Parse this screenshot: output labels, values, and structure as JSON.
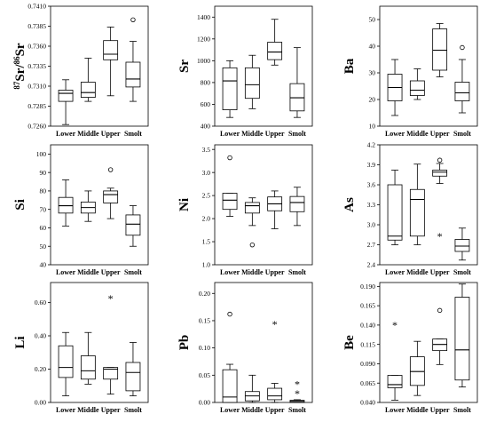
{
  "chart_data": [
    {
      "type": "boxplot",
      "ylabel": "87Sr/86Sr",
      "ylabel_parts": {
        "sup1": "87",
        "main1": "Sr/",
        "sup2": "86",
        "main2": "Sr"
      },
      "ylim": [
        0.726,
        0.741
      ],
      "yticks": [
        "0.7260",
        "0.7285",
        "0.7310",
        "0.7335",
        "0.7360",
        "0.7385",
        "0.7410"
      ],
      "categories": [
        "Lower",
        "Middle",
        "Upper",
        "Smolt"
      ],
      "boxes": [
        {
          "min": 0.7262,
          "q1": 0.7291,
          "median": 0.7301,
          "q3": 0.7305,
          "max": 0.7318,
          "outliers": [],
          "extremes": []
        },
        {
          "min": 0.7291,
          "q1": 0.7296,
          "median": 0.7302,
          "q3": 0.7315,
          "max": 0.7345,
          "outliers": [],
          "extremes": []
        },
        {
          "min": 0.7298,
          "q1": 0.7343,
          "median": 0.735,
          "q3": 0.7367,
          "max": 0.7384,
          "outliers": [],
          "extremes": []
        },
        {
          "min": 0.7291,
          "q1": 0.7309,
          "median": 0.7319,
          "q3": 0.734,
          "max": 0.7366,
          "outliers": [
            0.7393
          ],
          "extremes": []
        }
      ]
    },
    {
      "type": "boxplot",
      "ylabel": "Sr",
      "ylim": [
        400,
        1500
      ],
      "yticks": [
        "400",
        "600",
        "800",
        "1000",
        "1200",
        "1400"
      ],
      "categories": [
        "Lower",
        "Middle",
        "Upper",
        "Smolt"
      ],
      "boxes": [
        {
          "min": 480,
          "q1": 550,
          "median": 815,
          "q3": 935,
          "max": 1000,
          "outliers": [],
          "extremes": []
        },
        {
          "min": 560,
          "q1": 655,
          "median": 780,
          "q3": 935,
          "max": 1050,
          "outliers": [],
          "extremes": []
        },
        {
          "min": 960,
          "q1": 1010,
          "median": 1080,
          "q3": 1170,
          "max": 1380,
          "outliers": [],
          "extremes": []
        },
        {
          "min": 480,
          "q1": 540,
          "median": 660,
          "q3": 790,
          "max": 1120,
          "outliers": [],
          "extremes": []
        }
      ]
    },
    {
      "type": "boxplot",
      "ylabel": "Ba",
      "ylim": [
        10,
        55
      ],
      "yticks": [
        "10",
        "20",
        "30",
        "40",
        "50"
      ],
      "categories": [
        "Lower",
        "Middle",
        "Upper",
        "Smolt"
      ],
      "boxes": [
        {
          "min": 14,
          "q1": 19.5,
          "median": 24.5,
          "q3": 29.5,
          "max": 35,
          "outliers": [],
          "extremes": []
        },
        {
          "min": 20,
          "q1": 21.5,
          "median": 23.5,
          "q3": 27,
          "max": 31.5,
          "outliers": [],
          "extremes": []
        },
        {
          "min": 28.5,
          "q1": 31,
          "median": 38.5,
          "q3": 46.5,
          "max": 48.5,
          "outliers": [],
          "extremes": []
        },
        {
          "min": 15,
          "q1": 19.5,
          "median": 22.5,
          "q3": 26.5,
          "max": 35,
          "outliers": [
            39.5
          ],
          "extremes": []
        }
      ]
    },
    {
      "type": "boxplot",
      "ylabel": "Si",
      "ylim": [
        40,
        105
      ],
      "yticks": [
        "40",
        "50",
        "60",
        "70",
        "80",
        "90",
        "100"
      ],
      "categories": [
        "Lower",
        "Middle",
        "Upper",
        "Smolt"
      ],
      "boxes": [
        {
          "min": 61,
          "q1": 68,
          "median": 72,
          "q3": 76.5,
          "max": 86,
          "outliers": [],
          "extremes": []
        },
        {
          "min": 63.5,
          "q1": 68,
          "median": 71,
          "q3": 74,
          "max": 80,
          "outliers": [],
          "extremes": []
        },
        {
          "min": 65,
          "q1": 73.5,
          "median": 78,
          "q3": 80,
          "max": 81.5,
          "outliers": [
            91.5
          ],
          "extremes": []
        },
        {
          "min": 50,
          "q1": 56,
          "median": 62,
          "q3": 67,
          "max": 72,
          "outliers": [],
          "extremes": []
        }
      ]
    },
    {
      "type": "boxplot",
      "ylabel": "Ni",
      "ylim": [
        1.0,
        3.6
      ],
      "yticks": [
        "1.0",
        "1.5",
        "2.0",
        "2.5",
        "3.0",
        "3.5"
      ],
      "categories": [
        "Lower",
        "Middle",
        "Upper",
        "Smolt"
      ],
      "boxes": [
        {
          "min": 2.05,
          "q1": 2.2,
          "median": 2.4,
          "q3": 2.55,
          "max": 2.55,
          "outliers": [
            3.32
          ],
          "extremes": []
        },
        {
          "min": 1.85,
          "q1": 2.12,
          "median": 2.28,
          "q3": 2.35,
          "max": 2.45,
          "outliers": [
            1.43
          ],
          "extremes": []
        },
        {
          "min": 1.78,
          "q1": 2.17,
          "median": 2.32,
          "q3": 2.47,
          "max": 2.6,
          "outliers": [],
          "extremes": []
        },
        {
          "min": 1.85,
          "q1": 2.15,
          "median": 2.35,
          "q3": 2.48,
          "max": 2.68,
          "outliers": [],
          "extremes": []
        }
      ]
    },
    {
      "type": "boxplot",
      "ylabel": "As",
      "ylim": [
        2.4,
        4.2
      ],
      "yticks": [
        "2.4",
        "2.7",
        "3.0",
        "3.3",
        "3.6",
        "3.9",
        "4.2"
      ],
      "categories": [
        "Lower",
        "Middle",
        "Upper",
        "Smolt"
      ],
      "boxes": [
        {
          "min": 2.7,
          "q1": 2.77,
          "median": 2.83,
          "q3": 3.6,
          "max": 3.82,
          "outliers": [],
          "extremes": []
        },
        {
          "min": 2.7,
          "q1": 2.83,
          "median": 3.38,
          "q3": 3.53,
          "max": 3.91,
          "outliers": [],
          "extremes": []
        },
        {
          "min": 3.62,
          "q1": 3.73,
          "median": 3.79,
          "q3": 3.82,
          "max": 3.92,
          "outliers": [
            3.97
          ],
          "extremes": [
            2.84
          ]
        },
        {
          "min": 2.47,
          "q1": 2.6,
          "median": 2.68,
          "q3": 2.78,
          "max": 2.95,
          "outliers": [],
          "extremes": []
        }
      ]
    },
    {
      "type": "boxplot",
      "ylabel": "Li",
      "ylim": [
        0.0,
        0.72
      ],
      "yticks": [
        "0.00",
        "0.20",
        "0.40",
        "0.60"
      ],
      "categories": [
        "Lower",
        "Middle",
        "Upper",
        "Smolt"
      ],
      "boxes": [
        {
          "min": 0.04,
          "q1": 0.15,
          "median": 0.21,
          "q3": 0.34,
          "max": 0.42,
          "outliers": [],
          "extremes": []
        },
        {
          "min": 0.11,
          "q1": 0.14,
          "median": 0.19,
          "q3": 0.28,
          "max": 0.42,
          "outliers": [],
          "extremes": []
        },
        {
          "min": 0.05,
          "q1": 0.14,
          "median": 0.2,
          "q3": 0.21,
          "max": 0.21,
          "outliers": [],
          "extremes": [
            0.63
          ]
        },
        {
          "min": 0.04,
          "q1": 0.07,
          "median": 0.18,
          "q3": 0.24,
          "max": 0.36,
          "outliers": [],
          "extremes": []
        }
      ]
    },
    {
      "type": "boxplot",
      "ylabel": "Pb",
      "ylim": [
        0.0,
        0.22
      ],
      "yticks": [
        "0.00",
        "0.05",
        "0.10",
        "0.15",
        "0.20"
      ],
      "categories": [
        "Lower",
        "Middle",
        "Upper",
        "Smolt"
      ],
      "boxes": [
        {
          "min": 0.0,
          "q1": 0.0,
          "median": 0.01,
          "q3": 0.06,
          "max": 0.07,
          "outliers": [
            0.162
          ],
          "extremes": []
        },
        {
          "min": 0.0,
          "q1": 0.003,
          "median": 0.012,
          "q3": 0.02,
          "max": 0.05,
          "outliers": [],
          "extremes": []
        },
        {
          "min": 0.0,
          "q1": 0.005,
          "median": 0.012,
          "q3": 0.026,
          "max": 0.035,
          "outliers": [],
          "extremes": [
            0.145
          ]
        },
        {
          "min": 0.0,
          "q1": 0.0,
          "median": 0.002,
          "q3": 0.004,
          "max": 0.005,
          "outliers": [],
          "extremes": [
            0.018,
            0.035
          ]
        }
      ]
    },
    {
      "type": "boxplot",
      "ylabel": "Be",
      "ylim": [
        0.04,
        0.195
      ],
      "yticks": [
        "0.040",
        "0.065",
        "0.090",
        "0.115",
        "0.140",
        "0.165",
        "0.190"
      ],
      "categories": [
        "Lower",
        "Middle",
        "Upper",
        "Smolt"
      ],
      "boxes": [
        {
          "min": 0.043,
          "q1": 0.059,
          "median": 0.063,
          "q3": 0.075,
          "max": 0.075,
          "outliers": [],
          "extremes": [
            0.141
          ]
        },
        {
          "min": 0.049,
          "q1": 0.062,
          "median": 0.08,
          "q3": 0.099,
          "max": 0.119,
          "outliers": [],
          "extremes": []
        },
        {
          "min": 0.089,
          "q1": 0.107,
          "median": 0.115,
          "q3": 0.122,
          "max": 0.122,
          "outliers": [
            0.159
          ],
          "extremes": []
        },
        {
          "min": 0.06,
          "q1": 0.069,
          "median": 0.108,
          "q3": 0.176,
          "max": 0.193,
          "outliers": [],
          "extremes": []
        }
      ]
    }
  ]
}
